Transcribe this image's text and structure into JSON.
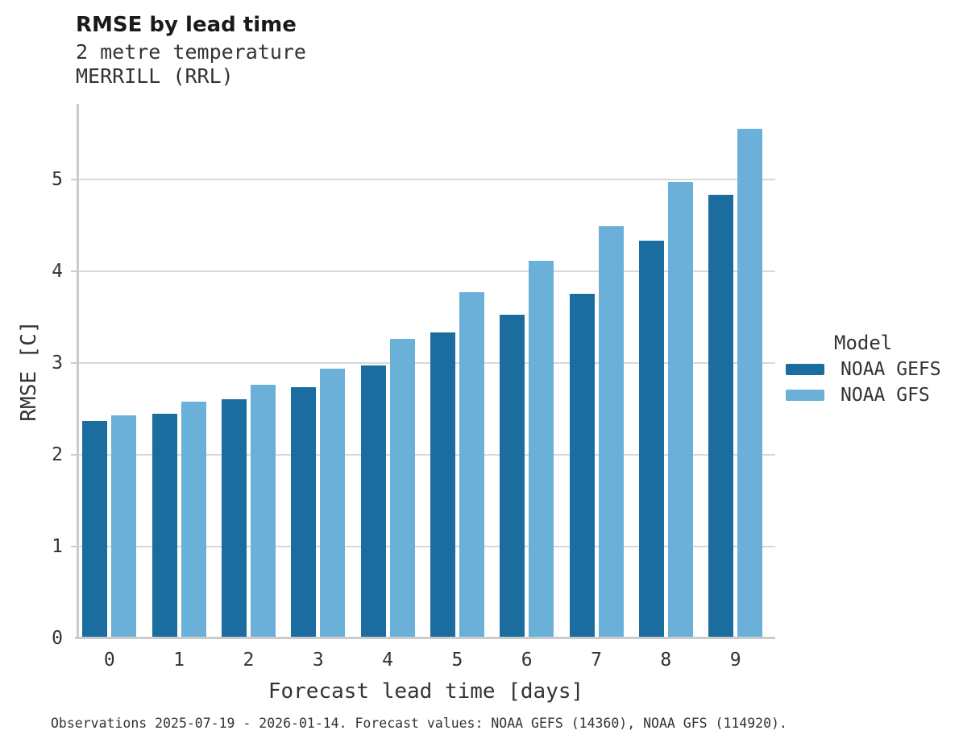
{
  "header": {
    "title": "RMSE by lead time",
    "subtitle_line1": "2 metre temperature",
    "subtitle_line2": "MERRILL (RRL)"
  },
  "legend": {
    "title": "Model"
  },
  "caption": "Observations 2025-07-19 - 2026-01-14. Forecast values: NOAA GEFS (14360), NOAA GFS (114920).",
  "colors": {
    "gefs_dark_blue": "#1A6D9E",
    "gfs_light_blue": "#6AB0D8",
    "gridline_gray": "#D8D8D8",
    "spine_gray": "#CCCCCC",
    "text_dark": "#333333",
    "title_black": "#1A1A1A"
  },
  "chart_data": {
    "type": "bar",
    "title": "RMSE by lead time",
    "subtitle": [
      "2 metre temperature",
      "MERRILL (RRL)"
    ],
    "categories": [
      "0",
      "1",
      "2",
      "3",
      "4",
      "5",
      "6",
      "7",
      "8",
      "9"
    ],
    "series": [
      {
        "name": "NOAA GEFS",
        "color": "#1A6D9E",
        "values": [
          2.35,
          2.43,
          2.59,
          2.72,
          2.95,
          3.31,
          3.51,
          3.73,
          4.31,
          4.81
        ]
      },
      {
        "name": "NOAA GFS",
        "color": "#6AB0D8",
        "values": [
          2.41,
          2.56,
          2.74,
          2.92,
          3.24,
          3.75,
          4.09,
          4.47,
          4.95,
          5.53
        ]
      }
    ],
    "xlabel": "Forecast lead time [days]",
    "ylabel": "RMSE [C]",
    "ylim": [
      0,
      5.82
    ],
    "yticks": [
      0,
      1,
      2,
      3,
      4,
      5
    ],
    "grid": true,
    "legend_title": "Model",
    "legend_position": "right-center"
  }
}
